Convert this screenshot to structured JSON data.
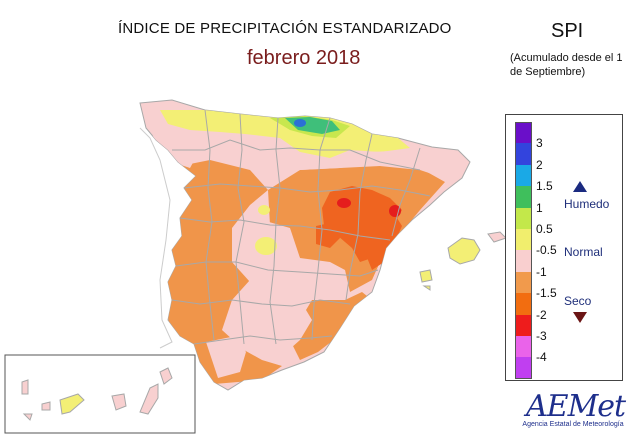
{
  "header": {
    "title": "ÍNDICE DE PRECIPITACIÓN ESTANDARIZADO",
    "subtitle": "febrero 2018",
    "index_name": "SPI",
    "note": "(Acumulado desde el 1 de Septiembre)"
  },
  "legend": {
    "ticks": [
      "3",
      "2",
      "1.5",
      "1",
      "0.5",
      "-0.5",
      "-1",
      "-1.5",
      "-2",
      "-3",
      "-4"
    ],
    "colors": [
      "#6a0fc9",
      "#3344dd",
      "#1aa9e6",
      "#3fbf5c",
      "#c3e84a",
      "#f1ee6d",
      "#f9cfcf",
      "#f19a4c",
      "#f26d10",
      "#ee1c1c",
      "#ea63ea",
      "#c03ff0"
    ],
    "categories": {
      "wet": "Humedo",
      "normal": "Normal",
      "dry": "Seco"
    },
    "arrow_colors": {
      "wet": "#1a2a80",
      "dry": "#6b1515"
    }
  },
  "logo": {
    "name": "AEMet",
    "agency": "Agencia Estatal de Meteorología"
  },
  "map": {
    "colors": {
      "dry": "#f0954a",
      "normal": "#f8d0d0",
      "slightly_wet": "#f3ef75",
      "wet": "#c8e74e",
      "very_wet": "#3fbf7a",
      "extremely_wet": "#2b6fd6",
      "very_dry": "#ef6420",
      "extremely_dry": "#e51d1d",
      "borders": "#a8a8a8"
    }
  }
}
